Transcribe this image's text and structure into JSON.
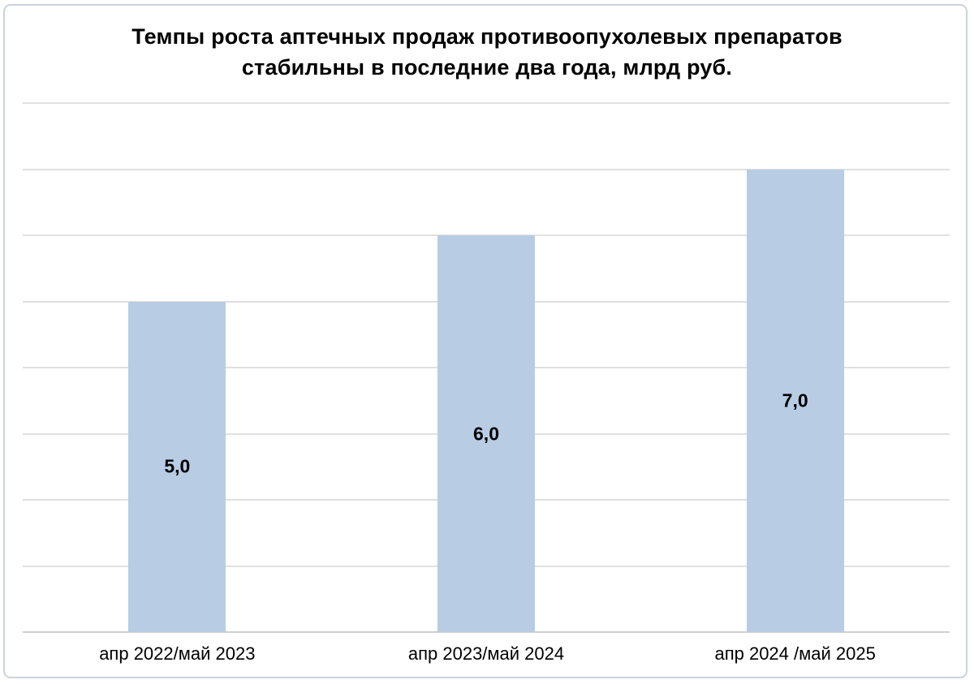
{
  "frame": {
    "border_color": "#ccd2da",
    "background_color": "#ffffff"
  },
  "title_lines": {
    "line1": "Темпы роста аптечных продаж противоопухолевых препаратов",
    "line2": "стабильны в последние два года, млрд руб."
  },
  "chart_data": {
    "type": "bar",
    "title": "Темпы роста аптечных продаж противоопухолевых препаратов стабильны в последние два года, млрд руб.",
    "unit": "млрд руб.",
    "categories": [
      "апр 2022/май 2023",
      "апр 2023/май 2024",
      "апр 2024 /май 2025"
    ],
    "values": [
      5.0,
      6.0,
      7.0
    ],
    "value_labels": [
      "5,0",
      "6,0",
      "7,0"
    ],
    "value_label_position": "inside-center",
    "xlabel": "",
    "ylabel": "",
    "ylim": [
      0,
      8
    ],
    "gridline_step": 1,
    "grid": true,
    "legend": false,
    "y_tick_labels_visible": false,
    "bar_color": "#b8cce4",
    "gridline_color": "#e0e0e0",
    "axis_line_color": "#cfcfcf",
    "text_color": "#000000"
  }
}
